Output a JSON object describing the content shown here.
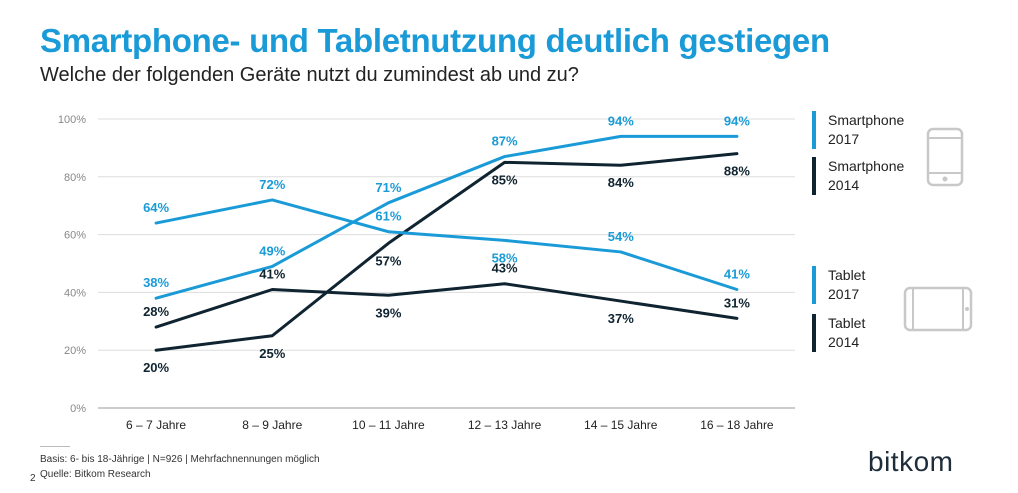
{
  "title": "Smartphone- und Tabletnutzung deutlich gestiegen",
  "subtitle": "Welche der folgenden Geräte nutzt du zumindest ab und zu?",
  "chart_data": {
    "type": "line",
    "categories": [
      "6 – 7 Jahre",
      "8 – 9 Jahre",
      "10 – 11 Jahre",
      "12 – 13 Jahre",
      "14 – 15 Jahre",
      "16 – 18 Jahre"
    ],
    "ylim": [
      0,
      100
    ],
    "yticks": [
      0,
      20,
      40,
      60,
      80,
      100
    ],
    "ytick_labels": [
      "0%",
      "20%",
      "40%",
      "60%",
      "80%",
      "100%"
    ],
    "value_suffix": "%",
    "grid": true,
    "legend": "right",
    "series": [
      {
        "key": "smartphone_2017",
        "name": "Smartphone 2017",
        "color": "#1a9bd7",
        "values": [
          38,
          49,
          71,
          87,
          94,
          94
        ]
      },
      {
        "key": "smartphone_2014",
        "name": "Smartphone 2014",
        "color": "#0f2430",
        "values": [
          20,
          25,
          57,
          85,
          84,
          88
        ]
      },
      {
        "key": "tablet_2017",
        "name": "Tablet 2017",
        "color": "#1a9bd7",
        "values": [
          64,
          72,
          61,
          58,
          54,
          41
        ]
      },
      {
        "key": "tablet_2014",
        "name": "Tablet 2014",
        "color": "#0f2430",
        "values": [
          28,
          41,
          39,
          43,
          37,
          31
        ]
      }
    ]
  },
  "legend": {
    "smartphone_2017": {
      "line1": "Smartphone",
      "line2": "2017",
      "color": "#1a9bd7"
    },
    "smartphone_2014": {
      "line1": "Smartphone",
      "line2": "2014",
      "color": "#0f2430"
    },
    "tablet_2017": {
      "line1": "Tablet",
      "line2": "2017",
      "color": "#1a9bd7"
    },
    "tablet_2014": {
      "line1": "Tablet",
      "line2": "2014",
      "color": "#0f2430"
    }
  },
  "icons": {
    "smartphone": "smartphone-icon",
    "tablet": "tablet-icon"
  },
  "footer": {
    "basis": "Basis: 6- bis 18-Jährige | N=926 | Mehrfachnennungen möglich",
    "source": "Quelle: Bitkom Research",
    "page": "2",
    "brand": "bitkom"
  }
}
